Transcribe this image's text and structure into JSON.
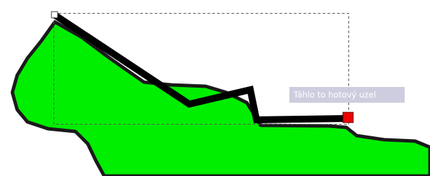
{
  "tooltip": {
    "text": "Táhlo to hotový uzel"
  }
}
